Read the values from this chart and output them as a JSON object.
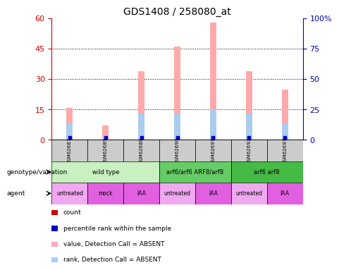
{
  "title": "GDS1408 / 258080_at",
  "samples": [
    "GSM62687",
    "GSM62689",
    "GSM62688",
    "GSM62690",
    "GSM62691",
    "GSM62692",
    "GSM62693"
  ],
  "pink_bar_values": [
    16,
    7,
    34,
    46,
    58,
    34,
    25
  ],
  "blue_bar_values": [
    8,
    1,
    13,
    13,
    15,
    13,
    8
  ],
  "red_marker_y": [
    0.5,
    0.5,
    0.5,
    0.5,
    0.5,
    0.5,
    0.5
  ],
  "blue_marker_y": [
    1.2,
    1.2,
    1.2,
    1.2,
    1.2,
    1.2,
    1.2
  ],
  "ylim_left": [
    0,
    60
  ],
  "ylim_right": [
    0,
    100
  ],
  "yticks_left": [
    0,
    15,
    30,
    45,
    60
  ],
  "yticks_right": [
    0,
    25,
    50,
    75,
    100
  ],
  "yticklabels_right": [
    "0",
    "25",
    "50",
    "75",
    "100%"
  ],
  "grid_lines": [
    15,
    30,
    45
  ],
  "genotype_groups": [
    {
      "label": "wild type",
      "span": [
        0,
        3
      ],
      "color": "#c8f0c0"
    },
    {
      "label": "arf6/arf6 ARF8/arf8",
      "span": [
        3,
        5
      ],
      "color": "#66cc66"
    },
    {
      "label": "arf6 arf8",
      "span": [
        5,
        7
      ],
      "color": "#44bb44"
    }
  ],
  "agent_groups": [
    {
      "label": "untreated",
      "span": [
        0,
        1
      ],
      "color": "#f0a8f0"
    },
    {
      "label": "mock",
      "span": [
        1,
        2
      ],
      "color": "#e060e0"
    },
    {
      "label": "IAA",
      "span": [
        2,
        3
      ],
      "color": "#e060e0"
    },
    {
      "label": "untreated",
      "span": [
        3,
        4
      ],
      "color": "#f0a8f0"
    },
    {
      "label": "IAA",
      "span": [
        4,
        5
      ],
      "color": "#e060e0"
    },
    {
      "label": "untreated",
      "span": [
        5,
        6
      ],
      "color": "#f0a8f0"
    },
    {
      "label": "IAA",
      "span": [
        6,
        7
      ],
      "color": "#e060e0"
    }
  ],
  "legend_items": [
    {
      "color": "#cc0000",
      "label": "count",
      "marker": "s"
    },
    {
      "color": "#0000cc",
      "label": "percentile rank within the sample",
      "marker": "s"
    },
    {
      "color": "#ffaabb",
      "label": "value, Detection Call = ABSENT",
      "marker": "s"
    },
    {
      "color": "#aaccff",
      "label": "rank, Detection Call = ABSENT",
      "marker": "s"
    }
  ],
  "bar_width": 0.18,
  "pink_color": "#ffaaaa",
  "blue_color": "#aaccee",
  "red_marker_color": "#cc0000",
  "blue_marker_color": "#0000cc",
  "left_axis_color": "#cc0000",
  "right_axis_color": "#0000bb",
  "sample_bg_color": "#cccccc",
  "bg_color": "#ffffff",
  "genotype_label": "genotype/variation",
  "agent_label": "agent",
  "n_samples": 7
}
